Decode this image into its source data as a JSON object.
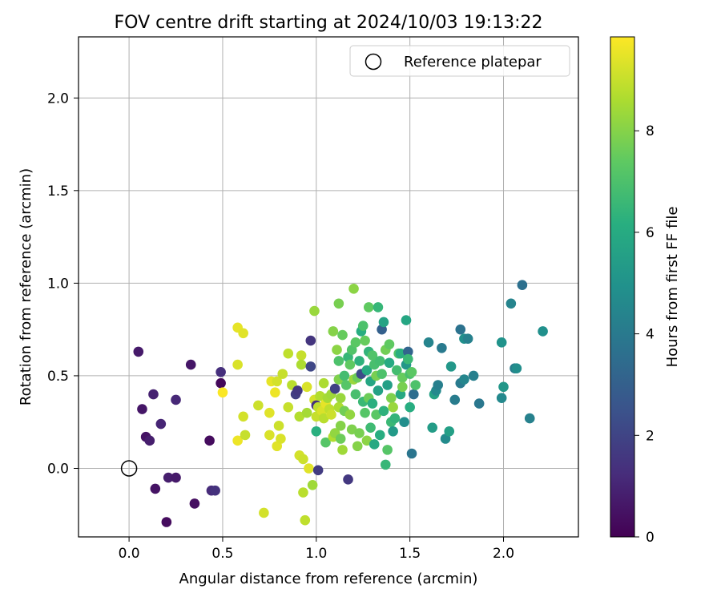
{
  "chart_data": {
    "type": "scatter",
    "title": "FOV centre drift starting at 2024/10/03 19:13:22",
    "xlabel": "Angular distance from reference (arcmin)",
    "ylabel": "Rotation from reference (arcmin)",
    "xlim": [
      -0.27,
      2.4
    ],
    "ylim": [
      -0.37,
      2.33
    ],
    "xticks": [
      0.0,
      0.5,
      1.0,
      1.5,
      2.0
    ],
    "xtick_labels": [
      "0.0",
      "0.5",
      "1.0",
      "1.5",
      "2.0"
    ],
    "yticks": [
      0.0,
      0.5,
      1.0,
      1.5,
      2.0
    ],
    "ytick_labels": [
      "0.0",
      "0.5",
      "1.0",
      "1.5",
      "2.0"
    ],
    "grid": true,
    "legend": {
      "position": "top-right",
      "entries": [
        "Reference platepar"
      ]
    },
    "reference_point": {
      "x": 0.0,
      "y": 0.0
    },
    "colorbar": {
      "label": "Hours from first FF file",
      "min": 0,
      "max": 9.85,
      "ticks": [
        0,
        2,
        4,
        6,
        8
      ],
      "tick_labels": [
        "0",
        "2",
        "4",
        "6",
        "8"
      ],
      "colormap": "viridis"
    },
    "points": [
      {
        "x": 0.05,
        "y": 0.63,
        "h": 0.7
      },
      {
        "x": 0.07,
        "y": 0.32,
        "h": 0.6
      },
      {
        "x": 0.09,
        "y": 0.17,
        "h": 0.5
      },
      {
        "x": 0.11,
        "y": 0.15,
        "h": 0.8
      },
      {
        "x": 0.13,
        "y": 0.4,
        "h": 0.9
      },
      {
        "x": 0.14,
        "y": -0.11,
        "h": 0.5
      },
      {
        "x": 0.17,
        "y": 0.24,
        "h": 1.0
      },
      {
        "x": 0.21,
        "y": -0.05,
        "h": 0.8
      },
      {
        "x": 0.2,
        "y": -0.29,
        "h": 0.3
      },
      {
        "x": 0.25,
        "y": -0.05,
        "h": 0.7
      },
      {
        "x": 0.25,
        "y": 0.37,
        "h": 1.1
      },
      {
        "x": 0.33,
        "y": 0.56,
        "h": 0.6
      },
      {
        "x": 0.35,
        "y": -0.19,
        "h": 0.4
      },
      {
        "x": 0.43,
        "y": 0.15,
        "h": 0.3
      },
      {
        "x": 0.44,
        "y": -0.12,
        "h": 1.2
      },
      {
        "x": 0.46,
        "y": -0.12,
        "h": 1.4
      },
      {
        "x": 0.49,
        "y": 0.52,
        "h": 1.3
      },
      {
        "x": 0.49,
        "y": 0.46,
        "h": 0.2
      },
      {
        "x": 0.5,
        "y": 0.41,
        "h": 9.8
      },
      {
        "x": 0.58,
        "y": 0.76,
        "h": 9.5
      },
      {
        "x": 0.58,
        "y": 0.56,
        "h": 9.3
      },
      {
        "x": 0.58,
        "y": 0.15,
        "h": 9.6
      },
      {
        "x": 0.61,
        "y": 0.73,
        "h": 9.4
      },
      {
        "x": 0.61,
        "y": 0.28,
        "h": 9.2
      },
      {
        "x": 0.62,
        "y": 0.18,
        "h": 9.0
      },
      {
        "x": 0.69,
        "y": 0.34,
        "h": 9.1
      },
      {
        "x": 0.72,
        "y": -0.24,
        "h": 9.2
      },
      {
        "x": 0.75,
        "y": 0.18,
        "h": 9.3
      },
      {
        "x": 0.75,
        "y": 0.3,
        "h": 9.4
      },
      {
        "x": 0.76,
        "y": 0.47,
        "h": 9.5
      },
      {
        "x": 0.78,
        "y": 0.41,
        "h": 9.6
      },
      {
        "x": 0.79,
        "y": 0.47,
        "h": 9.2
      },
      {
        "x": 0.79,
        "y": 0.12,
        "h": 9.4
      },
      {
        "x": 0.8,
        "y": 0.23,
        "h": 9.1
      },
      {
        "x": 0.81,
        "y": 0.16,
        "h": 9.3
      },
      {
        "x": 0.82,
        "y": 0.51,
        "h": 9.0
      },
      {
        "x": 0.85,
        "y": 0.62,
        "h": 8.9
      },
      {
        "x": 0.85,
        "y": 0.33,
        "h": 9.0
      },
      {
        "x": 0.87,
        "y": 0.45,
        "h": 8.8
      },
      {
        "x": 0.89,
        "y": 0.4,
        "h": 1.8
      },
      {
        "x": 0.9,
        "y": 0.42,
        "h": 1.6
      },
      {
        "x": 0.91,
        "y": 0.28,
        "h": 8.7
      },
      {
        "x": 0.91,
        "y": 0.07,
        "h": 9.2
      },
      {
        "x": 0.92,
        "y": 0.61,
        "h": 9.0
      },
      {
        "x": 0.92,
        "y": 0.56,
        "h": 8.6
      },
      {
        "x": 0.93,
        "y": -0.13,
        "h": 8.8
      },
      {
        "x": 0.93,
        "y": 0.05,
        "h": 9.1
      },
      {
        "x": 0.94,
        "y": -0.28,
        "h": 8.9
      },
      {
        "x": 0.95,
        "y": 0.3,
        "h": 8.5
      },
      {
        "x": 0.95,
        "y": 0.44,
        "h": 9.3
      },
      {
        "x": 0.96,
        "y": 0.0,
        "h": 9.4
      },
      {
        "x": 0.97,
        "y": 0.69,
        "h": 1.5
      },
      {
        "x": 0.97,
        "y": 0.55,
        "h": 2.1
      },
      {
        "x": 0.98,
        "y": -0.09,
        "h": 8.4
      },
      {
        "x": 0.99,
        "y": 0.85,
        "h": 8.3
      },
      {
        "x": 0.99,
        "y": 0.37,
        "h": 9.2
      },
      {
        "x": 1.0,
        "y": 0.34,
        "h": 1.4
      },
      {
        "x": 1.0,
        "y": 0.28,
        "h": 9.0
      },
      {
        "x": 1.0,
        "y": 0.2,
        "h": 6.2
      },
      {
        "x": 1.01,
        "y": 0.33,
        "h": 8.9
      },
      {
        "x": 1.02,
        "y": 0.39,
        "h": 8.7
      },
      {
        "x": 1.01,
        "y": -0.01,
        "h": 1.7
      },
      {
        "x": 1.03,
        "y": 0.31,
        "h": 9.3
      },
      {
        "x": 1.04,
        "y": 0.46,
        "h": 8.6
      },
      {
        "x": 1.04,
        "y": 0.27,
        "h": 8.8
      },
      {
        "x": 1.05,
        "y": 0.35,
        "h": 9.5
      },
      {
        "x": 1.05,
        "y": 0.14,
        "h": 7.2
      },
      {
        "x": 1.06,
        "y": 0.38,
        "h": 8.5
      },
      {
        "x": 1.07,
        "y": 0.32,
        "h": 8.9
      },
      {
        "x": 1.08,
        "y": 0.29,
        "h": 9.1
      },
      {
        "x": 1.08,
        "y": 0.4,
        "h": 8.4
      },
      {
        "x": 1.09,
        "y": 0.17,
        "h": 8.7
      },
      {
        "x": 1.09,
        "y": 0.74,
        "h": 8.0
      },
      {
        "x": 1.1,
        "y": 0.19,
        "h": 8.2
      },
      {
        "x": 1.1,
        "y": 0.43,
        "h": 1.9
      },
      {
        "x": 1.11,
        "y": 0.64,
        "h": 8.1
      },
      {
        "x": 1.12,
        "y": 0.48,
        "h": 7.9
      },
      {
        "x": 1.12,
        "y": 0.58,
        "h": 7.0
      },
      {
        "x": 1.12,
        "y": 0.33,
        "h": 8.6
      },
      {
        "x": 1.12,
        "y": 0.89,
        "h": 7.8
      },
      {
        "x": 1.13,
        "y": 0.38,
        "h": 8.3
      },
      {
        "x": 1.13,
        "y": 0.23,
        "h": 8.0
      },
      {
        "x": 1.13,
        "y": 0.16,
        "h": 7.6
      },
      {
        "x": 1.14,
        "y": 0.72,
        "h": 7.5
      },
      {
        "x": 1.14,
        "y": 0.1,
        "h": 8.4
      },
      {
        "x": 1.15,
        "y": 0.31,
        "h": 7.7
      },
      {
        "x": 1.15,
        "y": 0.5,
        "h": 6.8
      },
      {
        "x": 1.16,
        "y": 0.45,
        "h": 7.2
      },
      {
        "x": 1.17,
        "y": 0.6,
        "h": 6.5
      },
      {
        "x": 1.17,
        "y": -0.06,
        "h": 1.6
      },
      {
        "x": 1.18,
        "y": 0.29,
        "h": 8.2
      },
      {
        "x": 1.18,
        "y": 0.56,
        "h": 7.4
      },
      {
        "x": 1.19,
        "y": 0.64,
        "h": 7.1
      },
      {
        "x": 1.19,
        "y": 0.21,
        "h": 7.9
      },
      {
        "x": 1.2,
        "y": 0.97,
        "h": 8.1
      },
      {
        "x": 1.2,
        "y": 0.48,
        "h": 8.3
      },
      {
        "x": 1.21,
        "y": 0.68,
        "h": 7.3
      },
      {
        "x": 1.21,
        "y": 0.4,
        "h": 6.9
      },
      {
        "x": 1.22,
        "y": 0.12,
        "h": 8.0
      },
      {
        "x": 1.22,
        "y": 0.49,
        "h": 7.6
      },
      {
        "x": 1.23,
        "y": 0.19,
        "h": 7.8
      },
      {
        "x": 1.23,
        "y": 0.58,
        "h": 6.3
      },
      {
        "x": 1.24,
        "y": 0.74,
        "h": 6.1
      },
      {
        "x": 1.24,
        "y": 0.51,
        "h": 2.2
      },
      {
        "x": 1.25,
        "y": 0.77,
        "h": 7.0
      },
      {
        "x": 1.25,
        "y": 0.36,
        "h": 6.6
      },
      {
        "x": 1.26,
        "y": 0.69,
        "h": 7.5
      },
      {
        "x": 1.26,
        "y": 0.3,
        "h": 7.2
      },
      {
        "x": 1.27,
        "y": 0.53,
        "h": 6.0
      },
      {
        "x": 1.27,
        "y": 0.15,
        "h": 8.1
      },
      {
        "x": 1.28,
        "y": 0.87,
        "h": 7.4
      },
      {
        "x": 1.28,
        "y": 0.38,
        "h": 7.6
      },
      {
        "x": 1.28,
        "y": 0.63,
        "h": 6.4
      },
      {
        "x": 1.29,
        "y": 0.47,
        "h": 5.8
      },
      {
        "x": 1.29,
        "y": 0.22,
        "h": 6.7
      },
      {
        "x": 1.3,
        "y": 0.61,
        "h": 7.1
      },
      {
        "x": 1.3,
        "y": 0.35,
        "h": 6.2
      },
      {
        "x": 1.31,
        "y": 0.56,
        "h": 6.9
      },
      {
        "x": 1.31,
        "y": 0.13,
        "h": 5.9
      },
      {
        "x": 1.32,
        "y": 0.5,
        "h": 7.8
      },
      {
        "x": 1.32,
        "y": 0.29,
        "h": 7.3
      },
      {
        "x": 1.33,
        "y": 0.87,
        "h": 6.5
      },
      {
        "x": 1.33,
        "y": 0.42,
        "h": 5.6
      },
      {
        "x": 1.34,
        "y": 0.58,
        "h": 6.8
      },
      {
        "x": 1.34,
        "y": 0.18,
        "h": 6.1
      },
      {
        "x": 1.35,
        "y": 0.51,
        "h": 7.0
      },
      {
        "x": 1.35,
        "y": 0.75,
        "h": 3.0
      },
      {
        "x": 1.36,
        "y": 0.79,
        "h": 5.7
      },
      {
        "x": 1.36,
        "y": 0.31,
        "h": 6.3
      },
      {
        "x": 1.37,
        "y": 0.02,
        "h": 6.5
      },
      {
        "x": 1.37,
        "y": 0.64,
        "h": 7.7
      },
      {
        "x": 1.38,
        "y": 0.1,
        "h": 7.2
      },
      {
        "x": 1.38,
        "y": 0.45,
        "h": 5.5
      },
      {
        "x": 1.39,
        "y": 0.57,
        "h": 6.0
      },
      {
        "x": 1.39,
        "y": 0.67,
        "h": 7.4
      },
      {
        "x": 1.4,
        "y": 0.25,
        "h": 6.6
      },
      {
        "x": 1.4,
        "y": 0.38,
        "h": 7.9
      },
      {
        "x": 1.41,
        "y": 0.2,
        "h": 5.3
      },
      {
        "x": 1.41,
        "y": 0.33,
        "h": 8.3
      },
      {
        "x": 1.42,
        "y": 0.27,
        "h": 6.4
      },
      {
        "x": 1.43,
        "y": 0.53,
        "h": 6.8
      },
      {
        "x": 1.44,
        "y": 0.62,
        "h": 7.1
      },
      {
        "x": 1.45,
        "y": 0.4,
        "h": 5.9
      },
      {
        "x": 1.45,
        "y": 0.62,
        "h": 6.2
      },
      {
        "x": 1.46,
        "y": 0.49,
        "h": 7.5
      },
      {
        "x": 1.46,
        "y": 0.44,
        "h": 7.8
      },
      {
        "x": 1.47,
        "y": 0.25,
        "h": 4.8
      },
      {
        "x": 1.48,
        "y": 0.56,
        "h": 5.2
      },
      {
        "x": 1.48,
        "y": 0.8,
        "h": 5.8
      },
      {
        "x": 1.49,
        "y": 0.63,
        "h": 3.2
      },
      {
        "x": 1.49,
        "y": 0.59,
        "h": 6.6
      },
      {
        "x": 1.5,
        "y": 0.51,
        "h": 6.9
      },
      {
        "x": 1.5,
        "y": 0.33,
        "h": 6.1
      },
      {
        "x": 1.51,
        "y": 0.08,
        "h": 3.8
      },
      {
        "x": 1.51,
        "y": 0.52,
        "h": 7.3
      },
      {
        "x": 1.52,
        "y": 0.4,
        "h": 3.5
      },
      {
        "x": 1.53,
        "y": 0.45,
        "h": 7.0
      },
      {
        "x": 1.6,
        "y": 0.68,
        "h": 4.4
      },
      {
        "x": 1.62,
        "y": 0.22,
        "h": 5.4
      },
      {
        "x": 1.63,
        "y": 0.4,
        "h": 5.6
      },
      {
        "x": 1.64,
        "y": 0.42,
        "h": 4.6
      },
      {
        "x": 1.65,
        "y": 0.45,
        "h": 4.2
      },
      {
        "x": 1.67,
        "y": 0.65,
        "h": 4.0
      },
      {
        "x": 1.69,
        "y": 0.16,
        "h": 4.7
      },
      {
        "x": 1.71,
        "y": 0.2,
        "h": 5.5
      },
      {
        "x": 1.72,
        "y": 0.55,
        "h": 5.2
      },
      {
        "x": 1.74,
        "y": 0.37,
        "h": 4.1
      },
      {
        "x": 1.77,
        "y": 0.75,
        "h": 3.7
      },
      {
        "x": 1.77,
        "y": 0.46,
        "h": 4.0
      },
      {
        "x": 1.79,
        "y": 0.48,
        "h": 4.5
      },
      {
        "x": 1.79,
        "y": 0.7,
        "h": 4.9
      },
      {
        "x": 1.81,
        "y": 0.7,
        "h": 4.3
      },
      {
        "x": 1.84,
        "y": 0.5,
        "h": 4.2
      },
      {
        "x": 1.87,
        "y": 0.35,
        "h": 3.9
      },
      {
        "x": 1.99,
        "y": 0.38,
        "h": 4.6
      },
      {
        "x": 1.99,
        "y": 0.68,
        "h": 5.0
      },
      {
        "x": 2.0,
        "y": 0.44,
        "h": 5.2
      },
      {
        "x": 2.04,
        "y": 0.89,
        "h": 4.4
      },
      {
        "x": 2.06,
        "y": 0.54,
        "h": 4.1
      },
      {
        "x": 2.07,
        "y": 0.54,
        "h": 4.8
      },
      {
        "x": 2.1,
        "y": 0.99,
        "h": 3.6
      },
      {
        "x": 2.14,
        "y": 0.27,
        "h": 4.3
      },
      {
        "x": 2.21,
        "y": 0.74,
        "h": 4.9
      }
    ]
  }
}
